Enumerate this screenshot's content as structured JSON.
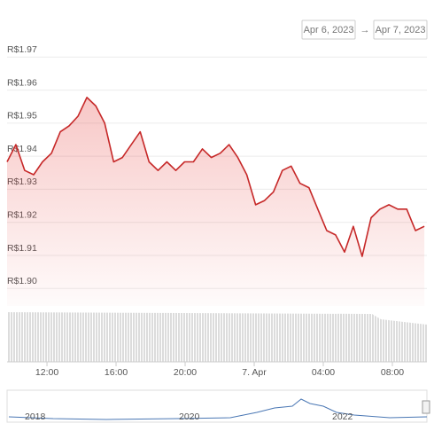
{
  "range_selector": {
    "from": "Apr 6, 2023",
    "arrow": "→",
    "to": "Apr 7, 2023"
  },
  "chart_data": {
    "type": "line",
    "color": "#c62828",
    "x": [
      9.69,
      10.2,
      10.71,
      11.23,
      11.74,
      12.26,
      12.77,
      13.28,
      13.8,
      14.31,
      14.83,
      15.34,
      15.86,
      16.37,
      16.88,
      17.4,
      17.91,
      18.43,
      18.94,
      19.46,
      19.97,
      20.48,
      21.0,
      21.51,
      22.03,
      22.54,
      23.05,
      23.57,
      24.08,
      24.6,
      25.11,
      25.63,
      26.14,
      26.65,
      27.17,
      27.68,
      28.2,
      28.71,
      29.23,
      29.74,
      30.25,
      30.77,
      31.28,
      31.8,
      32.31,
      32.83,
      33.34,
      33.85
    ],
    "values": [
      1.9383,
      1.9435,
      1.9357,
      1.9344,
      1.9383,
      1.9409,
      1.9474,
      1.9492,
      1.9521,
      1.9578,
      1.9552,
      1.95,
      1.9383,
      1.9396,
      1.9435,
      1.9474,
      1.9383,
      1.9357,
      1.9383,
      1.9357,
      1.9383,
      1.9383,
      1.9422,
      1.9396,
      1.9409,
      1.9435,
      1.9396,
      1.9344,
      1.9253,
      1.9266,
      1.9292,
      1.9357,
      1.937,
      1.9318,
      1.9305,
      1.924,
      1.9175,
      1.9162,
      1.911,
      1.9188,
      1.9097,
      1.9214,
      1.924,
      1.9253,
      1.924,
      1.924,
      1.9175,
      1.9188
    ],
    "xlim": [
      9.69,
      34.0
    ],
    "xticks": [
      {
        "value": 12,
        "label": "12:00"
      },
      {
        "value": 16,
        "label": "16:00"
      },
      {
        "value": 20,
        "label": "20:00"
      },
      {
        "value": 24,
        "label": "7. Apr"
      },
      {
        "value": 28,
        "label": "04:00"
      },
      {
        "value": 32,
        "label": "08:00"
      }
    ],
    "ylim": [
      1.8947,
      1.9725
    ],
    "yticks": [
      {
        "value": 1.97,
        "label": "R$1.97"
      },
      {
        "value": 1.96,
        "label": "R$1.96"
      },
      {
        "value": 1.95,
        "label": "R$1.95"
      },
      {
        "value": 1.94,
        "label": "R$1.94"
      },
      {
        "value": 1.93,
        "label": "R$1.93"
      },
      {
        "value": 1.92,
        "label": "R$1.92"
      },
      {
        "value": 1.91,
        "label": "R$1.91"
      },
      {
        "value": 1.9,
        "label": "R$1.90"
      }
    ],
    "grid": true
  },
  "navigator": {
    "labels": [
      "2018",
      "2020",
      "2022"
    ]
  }
}
